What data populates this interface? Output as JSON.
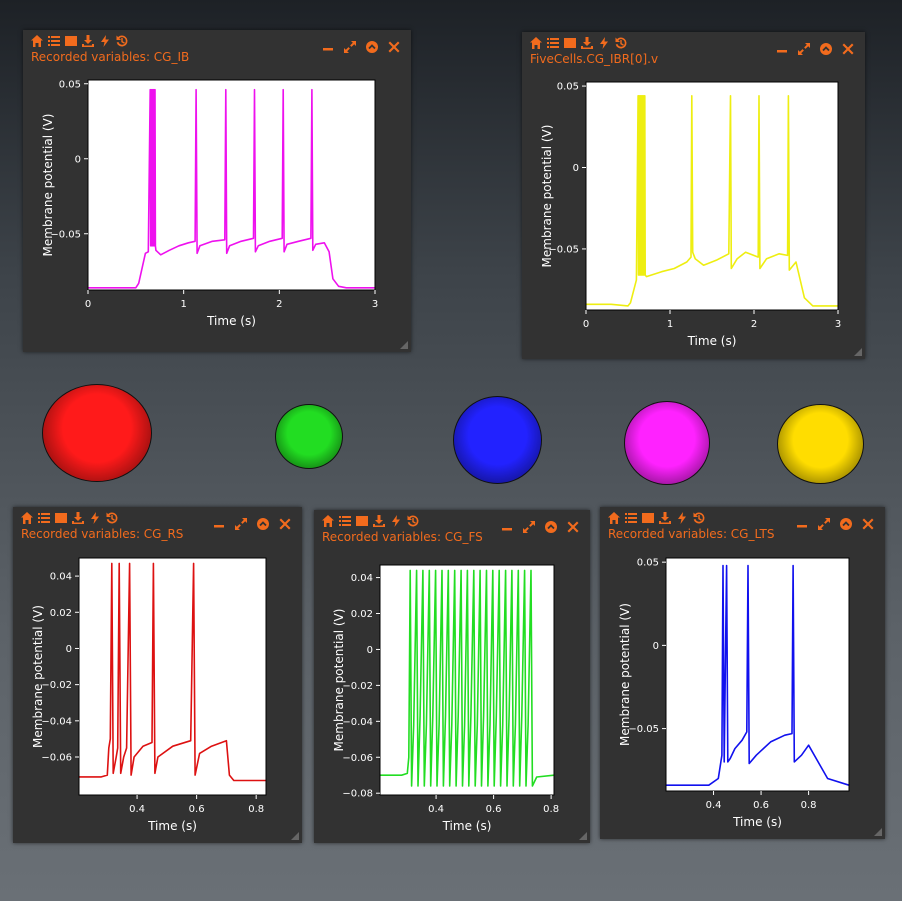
{
  "ui": {
    "accent": "#f26b1d",
    "toolbar_icons": [
      "home-icon",
      "list-icon",
      "image-icon",
      "download-icon",
      "zap-icon",
      "history-icon"
    ],
    "window_icons": [
      "minimize-icon",
      "expand-icon",
      "collapse-icon",
      "close-icon"
    ]
  },
  "cells": [
    {
      "name": "red-cell",
      "color": "#ff1a1a"
    },
    {
      "name": "green-cell",
      "color": "#22dd22"
    },
    {
      "name": "blue-cell",
      "color": "#2222ff"
    },
    {
      "name": "magenta-cell",
      "color": "#ff22ff"
    },
    {
      "name": "yellow-cell",
      "color": "#ffdd00"
    }
  ],
  "panels": [
    {
      "title": "Recorded variables: CG_IB",
      "chart_data": {
        "type": "line",
        "xlabel": "Time (s)",
        "ylabel": "Membrane potential (V)",
        "xlim": [
          0,
          3
        ],
        "ylim": [
          -0.0875,
          0.0525
        ],
        "xticks": [
          0,
          1,
          2,
          3
        ],
        "yticks": [
          0.05,
          0,
          -0.05
        ],
        "series": [
          {
            "color": "#ee11ee",
            "values": [
              [
                0,
                -0.086
              ],
              [
                0.5,
                -0.086
              ],
              [
                0.53,
                -0.083
              ],
              [
                0.6,
                -0.063
              ],
              [
                0.63,
                -0.062
              ],
              [
                0.65,
                0.046
              ],
              [
                0.655,
                -0.058
              ],
              [
                0.66,
                0.046
              ],
              [
                0.665,
                -0.058
              ],
              [
                0.67,
                0.046
              ],
              [
                0.675,
                -0.058
              ],
              [
                0.68,
                0.046
              ],
              [
                0.685,
                -0.058
              ],
              [
                0.69,
                0.046
              ],
              [
                0.695,
                -0.058
              ],
              [
                0.7,
                0.046
              ],
              [
                0.705,
                -0.058
              ],
              [
                0.71,
                -0.061
              ],
              [
                0.76,
                -0.064
              ],
              [
                0.85,
                -0.061
              ],
              [
                0.95,
                -0.058
              ],
              [
                1.05,
                -0.056
              ],
              [
                1.12,
                -0.055
              ],
              [
                1.13,
                0.046
              ],
              [
                1.14,
                -0.063
              ],
              [
                1.17,
                -0.058
              ],
              [
                1.3,
                -0.055
              ],
              [
                1.43,
                -0.054
              ],
              [
                1.44,
                0.046
              ],
              [
                1.45,
                -0.063
              ],
              [
                1.48,
                -0.058
              ],
              [
                1.6,
                -0.055
              ],
              [
                1.73,
                -0.053
              ],
              [
                1.74,
                0.046
              ],
              [
                1.75,
                -0.062
              ],
              [
                1.78,
                -0.058
              ],
              [
                1.9,
                -0.055
              ],
              [
                2.03,
                -0.053
              ],
              [
                2.04,
                0.046
              ],
              [
                2.05,
                -0.062
              ],
              [
                2.08,
                -0.057
              ],
              [
                2.2,
                -0.055
              ],
              [
                2.33,
                -0.053
              ],
              [
                2.34,
                0.046
              ],
              [
                2.35,
                -0.061
              ],
              [
                2.38,
                -0.057
              ],
              [
                2.47,
                -0.056
              ],
              [
                2.52,
                -0.062
              ],
              [
                2.56,
                -0.08
              ],
              [
                2.62,
                -0.085
              ],
              [
                2.7,
                -0.086
              ],
              [
                3,
                -0.086
              ]
            ]
          }
        ]
      }
    },
    {
      "title": "FiveCells.CG_IBR[0].v",
      "chart_data": {
        "type": "line",
        "xlabel": "Time (s)",
        "ylabel": "Membrane potential (V)",
        "xlim": [
          0,
          3
        ],
        "ylim": [
          -0.0875,
          0.0525
        ],
        "xticks": [
          0,
          1,
          2,
          3
        ],
        "yticks": [
          0.05,
          0,
          -0.05
        ],
        "series": [
          {
            "color": "#eeee11",
            "values": [
              [
                0,
                -0.084
              ],
              [
                0.3,
                -0.084
              ],
              [
                0.5,
                -0.085
              ],
              [
                0.53,
                -0.083
              ],
              [
                0.6,
                -0.069
              ],
              [
                0.62,
                0.044
              ],
              [
                0.625,
                -0.066
              ],
              [
                0.63,
                0.044
              ],
              [
                0.635,
                -0.066
              ],
              [
                0.64,
                0.044
              ],
              [
                0.645,
                -0.066
              ],
              [
                0.65,
                0.044
              ],
              [
                0.655,
                -0.066
              ],
              [
                0.66,
                0.044
              ],
              [
                0.665,
                -0.066
              ],
              [
                0.67,
                0.044
              ],
              [
                0.675,
                -0.066
              ],
              [
                0.68,
                0.044
              ],
              [
                0.685,
                -0.066
              ],
              [
                0.69,
                0.044
              ],
              [
                0.695,
                -0.066
              ],
              [
                0.7,
                0.044
              ],
              [
                0.705,
                -0.066
              ],
              [
                0.72,
                -0.067
              ],
              [
                0.78,
                -0.066
              ],
              [
                0.9,
                -0.064
              ],
              [
                1.05,
                -0.062
              ],
              [
                1.2,
                -0.058
              ],
              [
                1.25,
                -0.055
              ],
              [
                1.26,
                0.044
              ],
              [
                1.27,
                -0.052
              ],
              [
                1.3,
                -0.056
              ],
              [
                1.4,
                -0.06
              ],
              [
                1.55,
                -0.057
              ],
              [
                1.7,
                -0.053
              ],
              [
                1.72,
                0.044
              ],
              [
                1.73,
                -0.062
              ],
              [
                1.8,
                -0.056
              ],
              [
                1.9,
                -0.052
              ],
              [
                2.05,
                -0.055
              ],
              [
                2.06,
                0.044
              ],
              [
                2.07,
                -0.062
              ],
              [
                2.15,
                -0.056
              ],
              [
                2.3,
                -0.053
              ],
              [
                2.4,
                -0.054
              ],
              [
                2.41,
                0.044
              ],
              [
                2.42,
                -0.063
              ],
              [
                2.5,
                -0.058
              ],
              [
                2.6,
                -0.08
              ],
              [
                2.7,
                -0.085
              ],
              [
                3,
                -0.085
              ]
            ]
          }
        ]
      }
    },
    {
      "title": "Recorded variables: CG_RS",
      "chart_data": {
        "type": "line",
        "xlabel": "Time (s)",
        "ylabel": "Membrane potential (V)",
        "xlim": [
          0.205,
          0.833
        ],
        "ylim": [
          -0.081,
          0.05
        ],
        "xticks": [
          0.4,
          0.6,
          0.8
        ],
        "yticks": [
          0.04,
          0.02,
          0,
          -0.02,
          -0.04,
          -0.06
        ],
        "series": [
          {
            "color": "#dd1111",
            "values": [
              [
                0.205,
                -0.071
              ],
              [
                0.28,
                -0.071
              ],
              [
                0.3,
                -0.07
              ],
              [
                0.305,
                -0.055
              ],
              [
                0.31,
                -0.05
              ],
              [
                0.315,
                0.047
              ],
              [
                0.32,
                -0.069
              ],
              [
                0.33,
                -0.06
              ],
              [
                0.335,
                -0.055
              ],
              [
                0.34,
                0.047
              ],
              [
                0.345,
                -0.069
              ],
              [
                0.355,
                -0.06
              ],
              [
                0.365,
                -0.055
              ],
              [
                0.375,
                0.047
              ],
              [
                0.38,
                -0.07
              ],
              [
                0.39,
                -0.06
              ],
              [
                0.42,
                -0.054
              ],
              [
                0.45,
                -0.052
              ],
              [
                0.455,
                0.047
              ],
              [
                0.46,
                -0.069
              ],
              [
                0.47,
                -0.06
              ],
              [
                0.52,
                -0.054
              ],
              [
                0.58,
                -0.051
              ],
              [
                0.59,
                0.047
              ],
              [
                0.595,
                -0.07
              ],
              [
                0.61,
                -0.058
              ],
              [
                0.65,
                -0.054
              ],
              [
                0.7,
                -0.051
              ],
              [
                0.71,
                -0.07
              ],
              [
                0.725,
                -0.073
              ],
              [
                0.833,
                -0.073
              ]
            ]
          }
        ]
      }
    },
    {
      "title": "Recorded variables: CG_FS",
      "chart_data": {
        "type": "line",
        "xlabel": "Time (s)",
        "ylabel": "Membrane potential (V)",
        "xlim": [
          0.205,
          0.81
        ],
        "ylim": [
          -0.081,
          0.047
        ],
        "xticks": [
          0.4,
          0.6,
          0.8
        ],
        "yticks": [
          0.04,
          0.02,
          0,
          -0.02,
          -0.04,
          -0.06,
          -0.08
        ],
        "series": [
          {
            "color": "#22dd22",
            "values": [
              [
                0.205,
                -0.07
              ],
              [
                0.28,
                -0.07
              ],
              [
                0.3,
                -0.069
              ],
              [
                0.305,
                -0.06
              ],
              [
                0.31,
                0.044
              ]
            ],
            "spikes": {
              "start": 0.31,
              "end": 0.73,
              "count": 20,
              "peak": 0.044,
              "trough": -0.076,
              "base": -0.04
            },
            "tail": [
              [
                0.735,
                -0.076
              ],
              [
                0.75,
                -0.071
              ],
              [
                0.81,
                -0.07
              ]
            ]
          }
        ]
      }
    },
    {
      "title": "Recorded variables: CG_LTS",
      "chart_data": {
        "type": "line",
        "xlabel": "Time (s)",
        "ylabel": "Membrane potential (V)",
        "xlim": [
          0.2,
          0.97
        ],
        "ylim": [
          -0.0875,
          0.0525
        ],
        "xticks": [
          0.4,
          0.6,
          0.8
        ],
        "yticks": [
          0.05,
          0,
          -0.05
        ],
        "series": [
          {
            "color": "#1111ee",
            "values": [
              [
                0.2,
                -0.084
              ],
              [
                0.38,
                -0.084
              ],
              [
                0.42,
                -0.08
              ],
              [
                0.435,
                -0.066
              ],
              [
                0.44,
                0.048
              ],
              [
                0.445,
                -0.07
              ],
              [
                0.455,
                0.048
              ],
              [
                0.46,
                -0.07
              ],
              [
                0.47,
                -0.068
              ],
              [
                0.49,
                -0.062
              ],
              [
                0.52,
                -0.057
              ],
              [
                0.54,
                -0.052
              ],
              [
                0.545,
                0.048
              ],
              [
                0.55,
                -0.071
              ],
              [
                0.58,
                -0.066
              ],
              [
                0.64,
                -0.058
              ],
              [
                0.7,
                -0.054
              ],
              [
                0.73,
                -0.053
              ],
              [
                0.735,
                0.048
              ],
              [
                0.74,
                -0.07
              ],
              [
                0.77,
                -0.066
              ],
              [
                0.8,
                -0.06
              ],
              [
                0.84,
                -0.07
              ],
              [
                0.88,
                -0.08
              ],
              [
                0.97,
                -0.084
              ]
            ]
          }
        ]
      }
    }
  ]
}
